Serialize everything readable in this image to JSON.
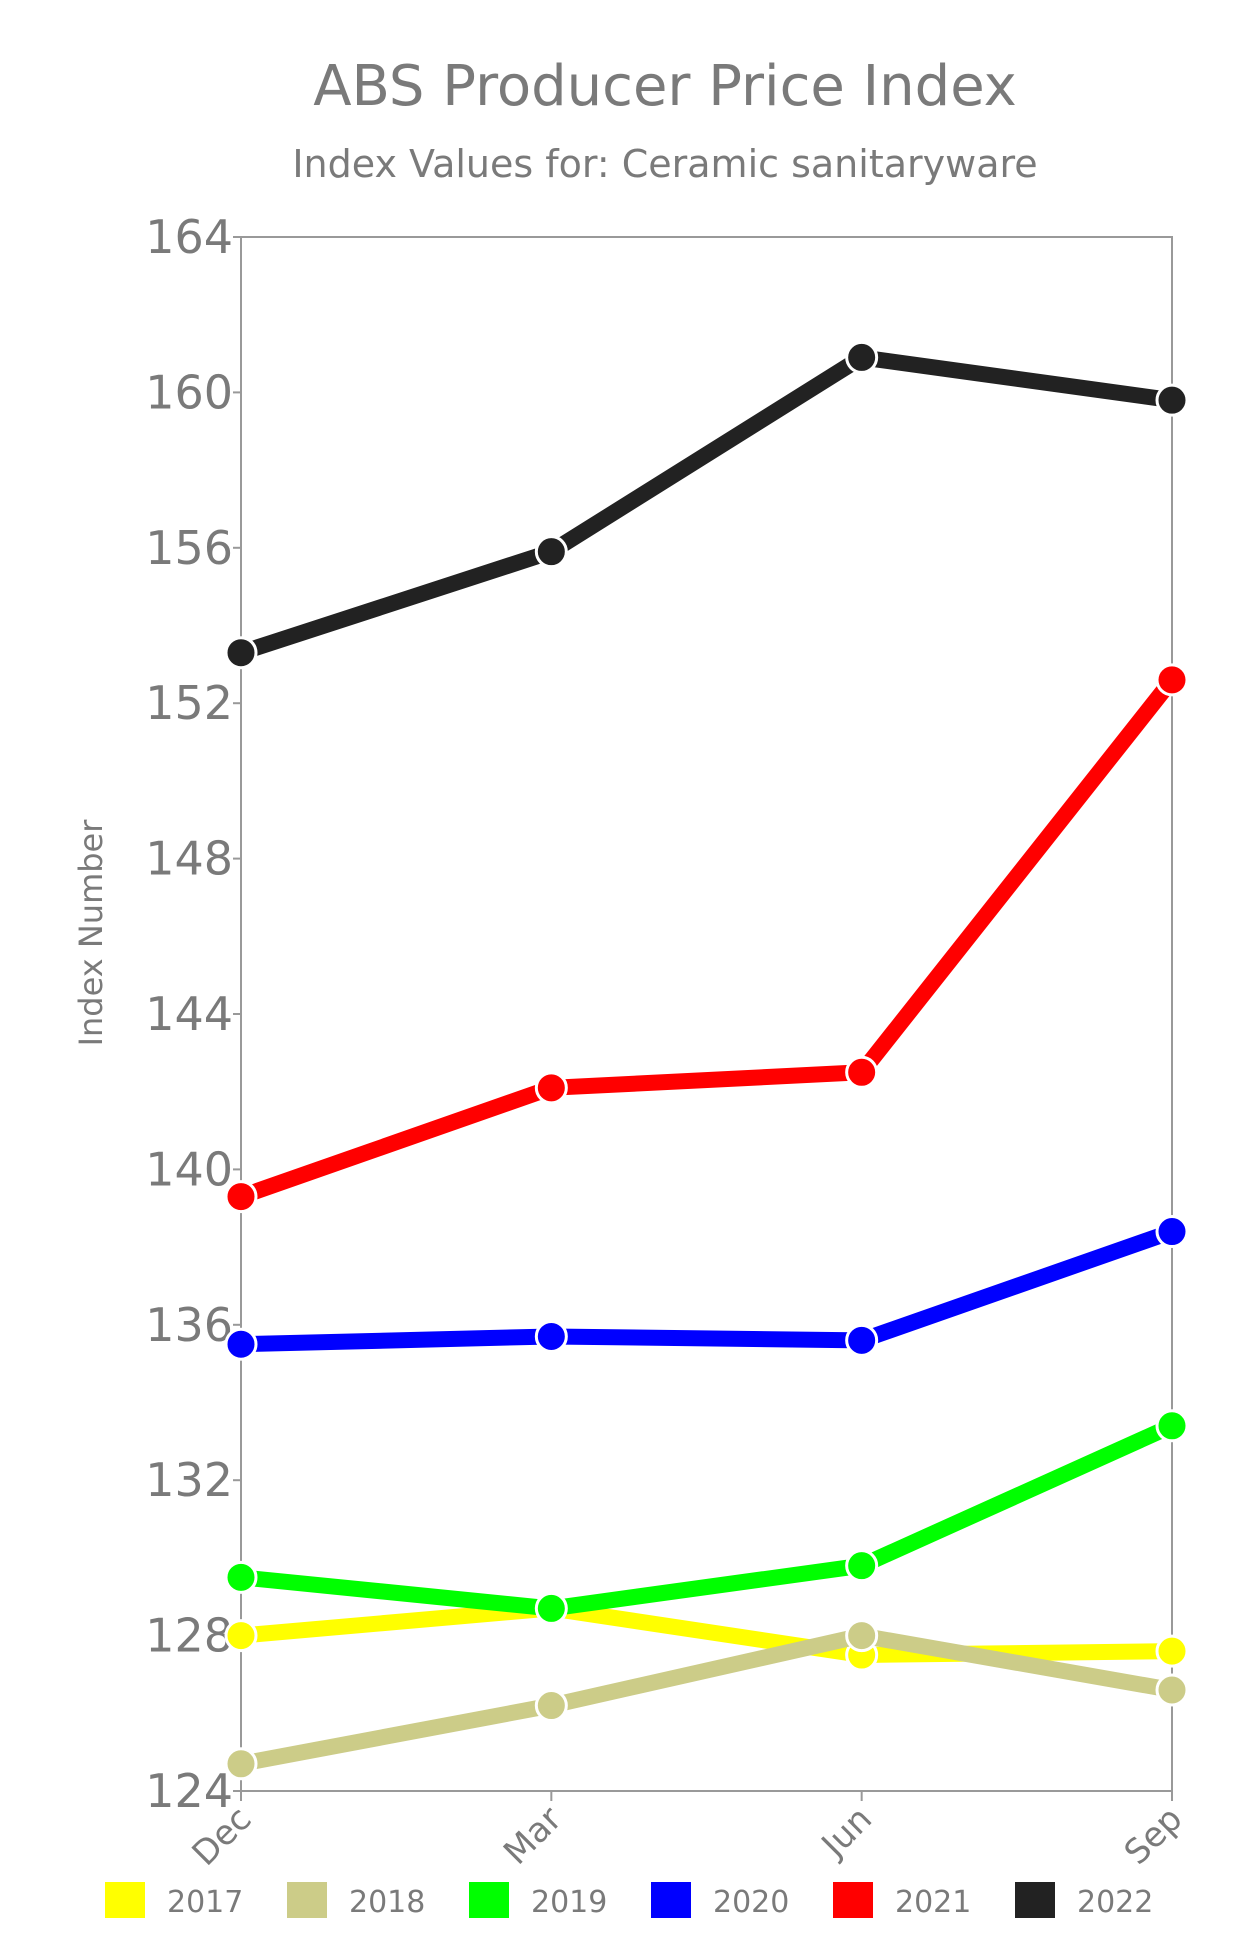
{
  "chart_data": {
    "type": "line",
    "title": "ABS Producer Price Index",
    "subtitle": "Index Values for: Ceramic sanitaryware",
    "xlabel": "",
    "ylabel": "Index Number",
    "categories": [
      "Dec",
      "Mar",
      "Jun",
      "Sep"
    ],
    "ylim": [
      124,
      164
    ],
    "yticks": [
      124,
      128,
      132,
      136,
      140,
      144,
      148,
      152,
      156,
      160,
      164
    ],
    "grid": false,
    "legend_position": "bottom",
    "series": [
      {
        "name": "2017",
        "color": "#ffff00",
        "values": [
          128.0,
          128.7,
          127.5,
          127.6
        ]
      },
      {
        "name": "2018",
        "color": "#cccc88",
        "values": [
          124.7,
          126.2,
          128.0,
          126.6
        ]
      },
      {
        "name": "2019",
        "color": "#00ff00",
        "values": [
          129.5,
          128.7,
          129.8,
          133.4
        ]
      },
      {
        "name": "2020",
        "color": "#0000ff",
        "values": [
          135.5,
          135.7,
          135.6,
          138.4
        ]
      },
      {
        "name": "2021",
        "color": "#ff0000",
        "values": [
          139.3,
          142.1,
          142.5,
          152.6
        ]
      },
      {
        "name": "2022",
        "color": "#222222",
        "values": [
          153.3,
          155.9,
          160.9,
          159.8
        ]
      }
    ]
  }
}
